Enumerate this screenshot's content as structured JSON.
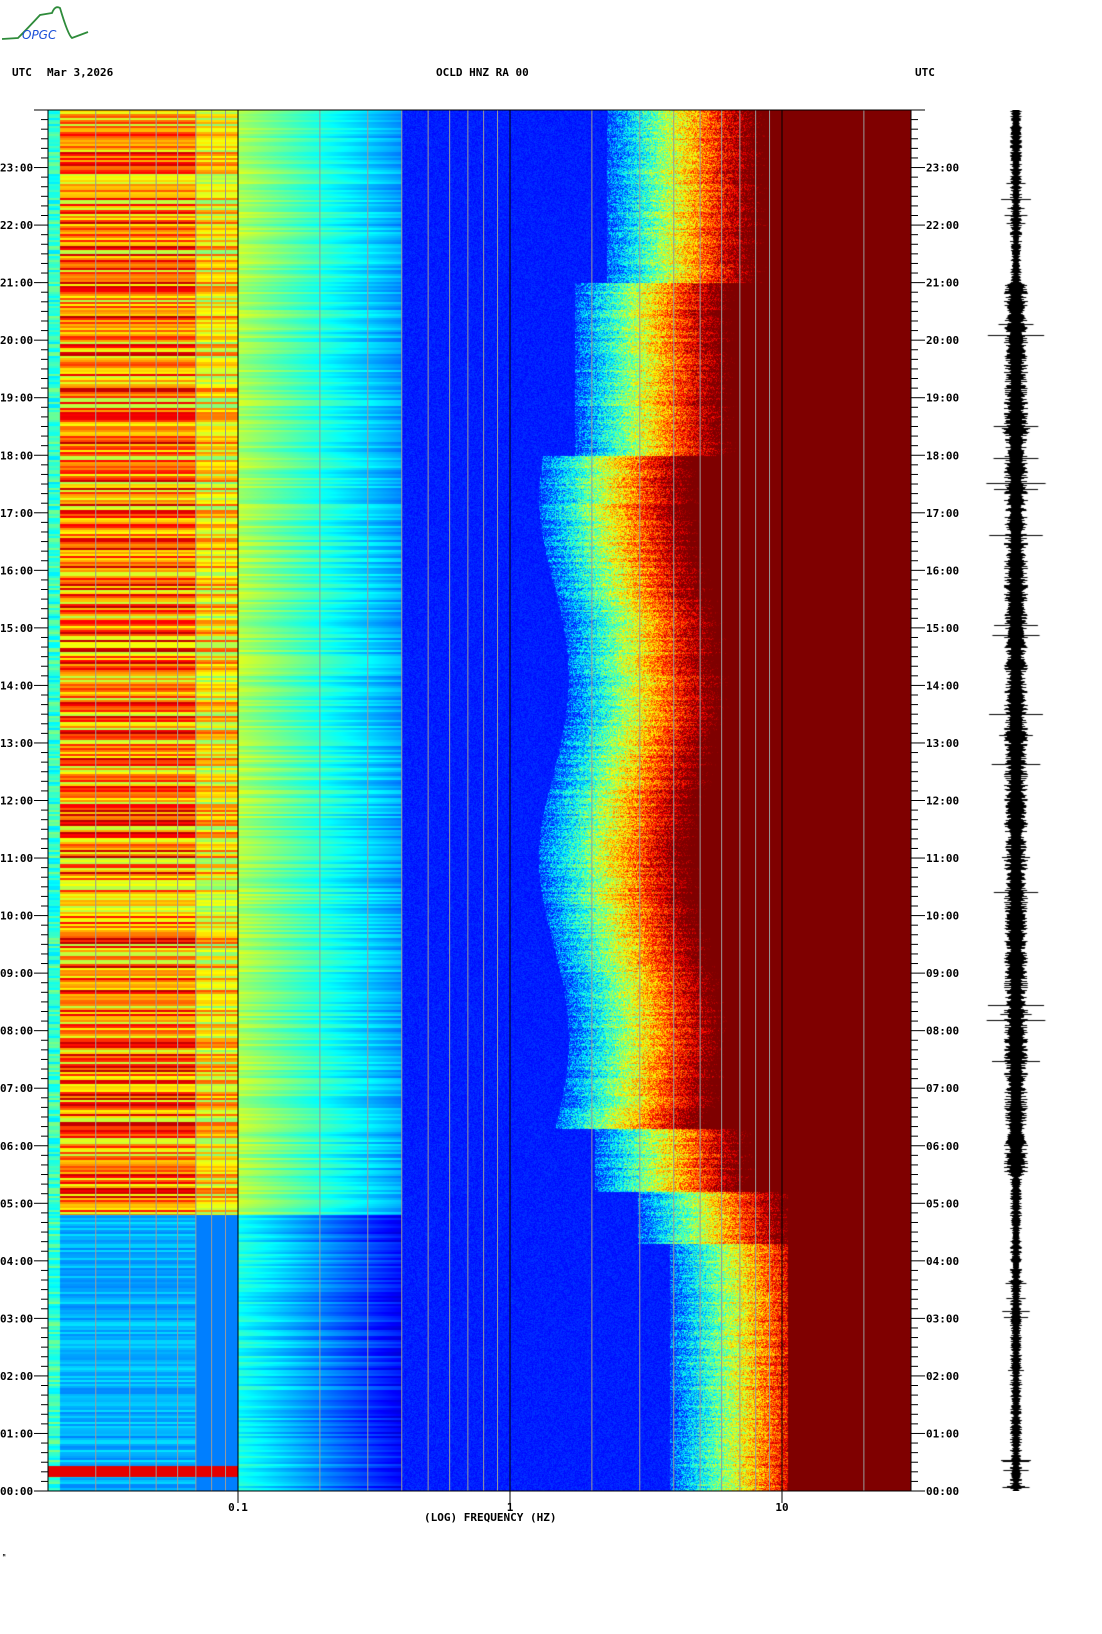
{
  "logo": {
    "text": "OPGC",
    "colors": {
      "curve": "#2e8b3a",
      "text": "#1a4fd8"
    }
  },
  "header": {
    "left_timezone": "UTC",
    "date": "Mar 3,2026",
    "station": "OCLD HNZ RA 00",
    "right_timezone": "UTC"
  },
  "footer_mark": "ᴹ",
  "chart_data": {
    "type": "heatmap",
    "title": "OCLD HNZ RA 00",
    "date": "Mar 3,2026",
    "xlabel": "(LOG) FREQUENCY (HZ)",
    "xscale": "log",
    "x_range": [
      0.02,
      30
    ],
    "x_ticks": [
      0.1,
      1,
      10
    ],
    "x_tick_labels": [
      "0.1",
      "1",
      "10"
    ],
    "x_minor_gridlines": [
      0.03,
      0.04,
      0.05,
      0.06,
      0.07,
      0.08,
      0.09,
      0.2,
      0.3,
      0.4,
      0.5,
      0.6,
      0.7,
      0.8,
      0.9,
      2,
      3,
      4,
      5,
      6,
      7,
      8,
      9,
      20
    ],
    "ylabel": "UTC",
    "y_range_hours": [
      0,
      24
    ],
    "y_tick_labels": [
      "00:00",
      "01:00",
      "02:00",
      "03:00",
      "04:00",
      "05:00",
      "06:00",
      "07:00",
      "08:00",
      "09:00",
      "10:00",
      "11:00",
      "12:00",
      "13:00",
      "14:00",
      "15:00",
      "16:00",
      "17:00",
      "18:00",
      "19:00",
      "20:00",
      "21:00",
      "22:00",
      "23:00"
    ],
    "y_minor_tick_minutes": 10,
    "colormap": "jet",
    "grid": true,
    "description_of_bands": {
      "high_energy_above_hz": 10,
      "daytime_corner_hz": 3.5,
      "nighttime_corner_hz": 9
    },
    "seismogram_trace": true
  }
}
